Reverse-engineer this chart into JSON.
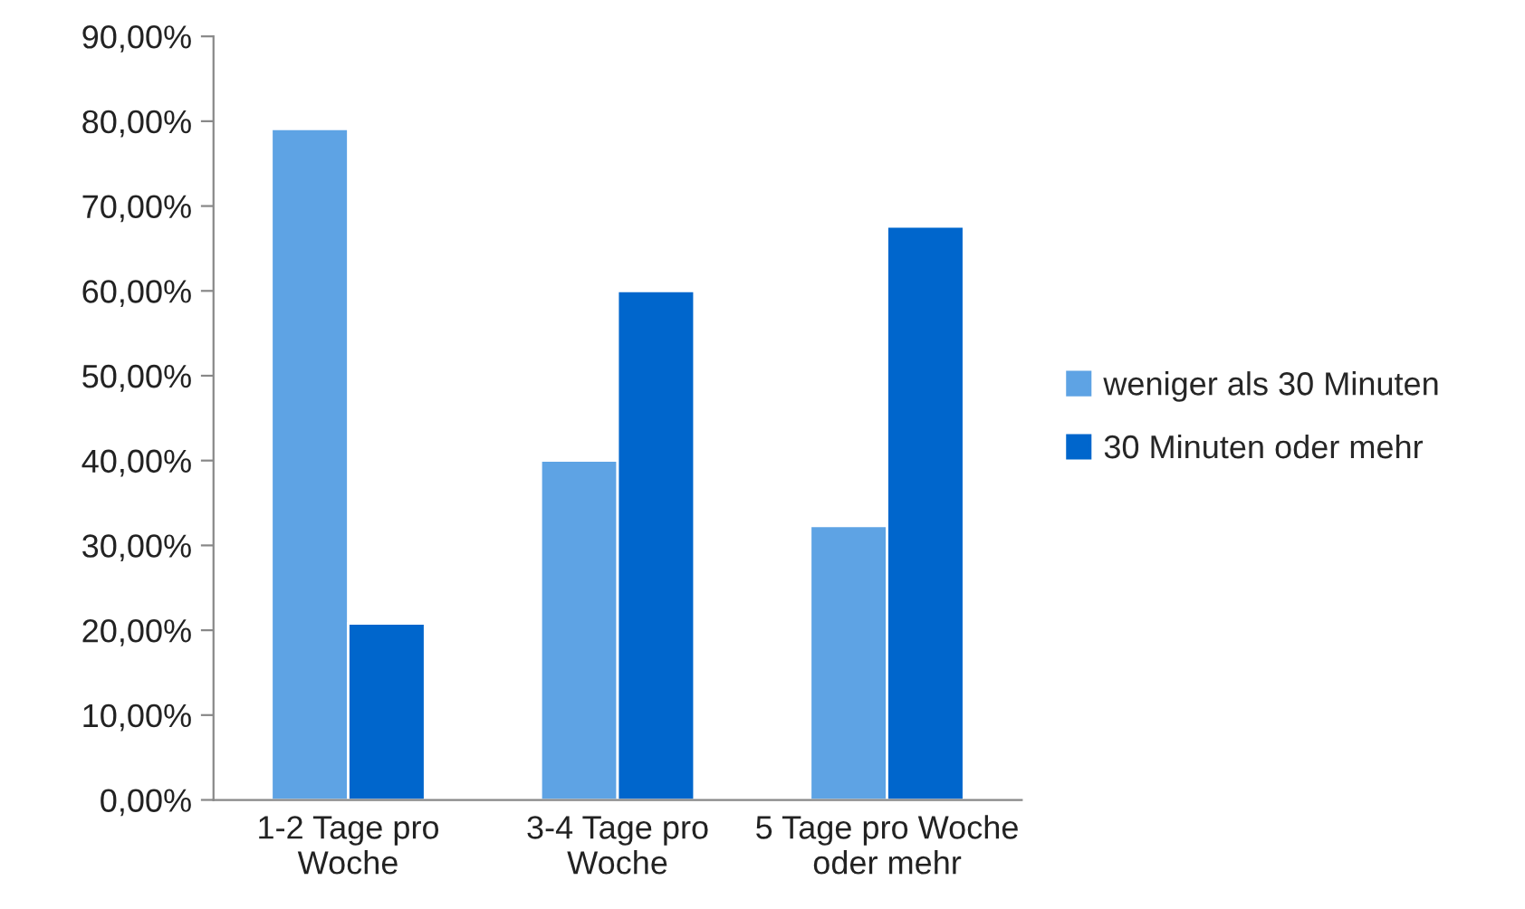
{
  "chart_data": {
    "type": "bar",
    "categories": [
      "1-2 Tage pro\nWoche",
      "3-4 Tage pro\nWoche",
      "5 Tage pro Woche\noder mehr"
    ],
    "series": [
      {
        "name": "weniger als 30 Minuten",
        "color": "#5ea3e4",
        "values": [
          79.1,
          40.0,
          32.3
        ]
      },
      {
        "name": "30 Minuten oder mehr",
        "color": "#0066cc",
        "values": [
          20.8,
          60.0,
          67.6
        ]
      }
    ],
    "ylim": [
      0,
      90
    ],
    "yticks": [
      {
        "value": 0,
        "label": "0,00%"
      },
      {
        "value": 10,
        "label": "10,00%"
      },
      {
        "value": 20,
        "label": "20,00%"
      },
      {
        "value": 30,
        "label": "30,00%"
      },
      {
        "value": 40,
        "label": "40,00%"
      },
      {
        "value": 50,
        "label": "50,00%"
      },
      {
        "value": 60,
        "label": "60,00%"
      },
      {
        "value": 70,
        "label": "70,00%"
      },
      {
        "value": 80,
        "label": "80,00%"
      },
      {
        "value": 90,
        "label": "90,00%"
      }
    ],
    "grid": false,
    "legend": "right"
  }
}
